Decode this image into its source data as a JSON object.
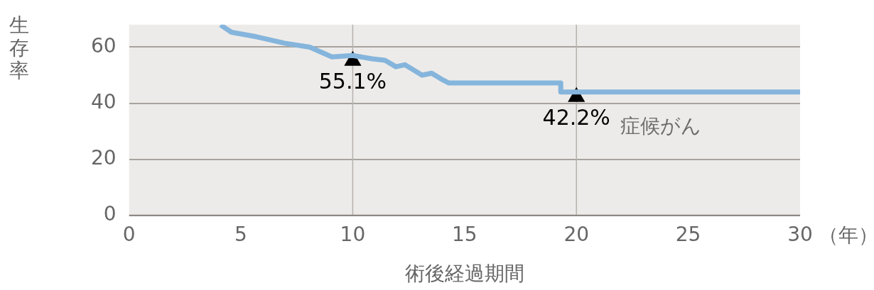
{
  "chart_data": {
    "type": "line",
    "xlabel": "術後経過期間",
    "ylabel": "生存率",
    "xlim": [
      0,
      30
    ],
    "xticks": [
      0,
      5,
      10,
      15,
      20,
      25,
      30
    ],
    "ylim": [
      0,
      68
    ],
    "yticks": [
      0,
      20,
      40,
      60
    ],
    "grid": "y",
    "legend": false,
    "marker": "none",
    "line_style": "solid",
    "ref_lines": [
      {
        "axis": "x",
        "value": 10,
        "label": null,
        "color": "#b5b2ae"
      },
      {
        "axis": "x",
        "value": 20,
        "label": null,
        "color": "#b5b2ae"
      }
    ],
    "annotations": [
      "（年）"
    ],
    "series": [
      {
        "name": "症候がん",
        "color": "#85b5dc",
        "x": [
          4.09,
          4.58,
          5.69,
          6.95,
          8.08,
          9.07,
          10.0,
          10.88,
          11.44,
          11.93,
          12.33,
          13.1,
          13.53,
          13.96,
          14.3,
          19.3,
          19.3,
          30
        ],
        "values": [
          67.9,
          65.3,
          63.7,
          61.4,
          60,
          56.5,
          57,
          55.8,
          55.3,
          53,
          53.7,
          50,
          50.7,
          48.6,
          47.2,
          47.2,
          44,
          44
        ]
      },
      {
        "type": "scatter",
        "color": "#000000",
        "marker": "triangle",
        "x": [
          10,
          20
        ],
        "values": [
          55.1,
          42.2
        ],
        "value_labels": [
          "55.1%",
          "42.2%"
        ]
      }
    ]
  }
}
